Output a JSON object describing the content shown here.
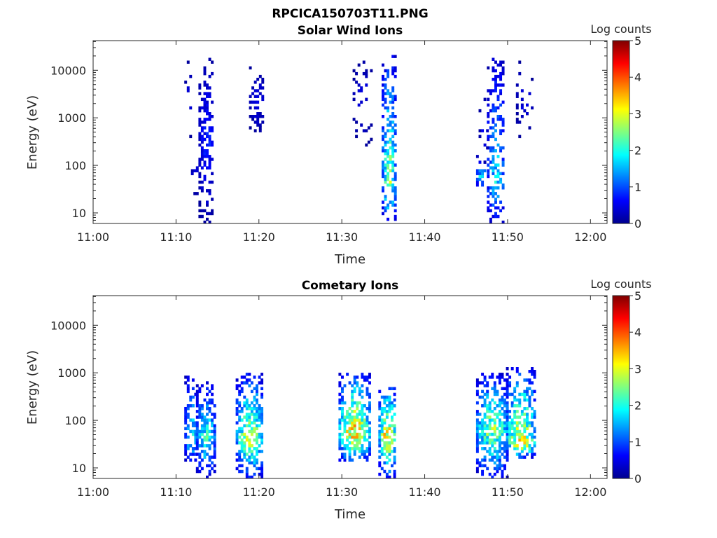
{
  "figure_title": "RPCICA150703T11.PNG",
  "chart_data": [
    {
      "type": "heatmap",
      "title": "Solar Wind Ions",
      "xlabel": "Time",
      "ylabel": "Energy (eV)",
      "x_ticks": [
        "11:00",
        "11:10",
        "11:20",
        "11:30",
        "11:40",
        "11:50",
        "12:00"
      ],
      "xlim": [
        "11:00",
        "12:02"
      ],
      "y_scale": "log",
      "y_ticks": [
        10,
        100,
        1000,
        10000
      ],
      "y_tick_labels": [
        "10",
        "100",
        "1000",
        "10000"
      ],
      "ylim": [
        6,
        42000
      ],
      "colorbar": {
        "label": "Log counts",
        "range": [
          0,
          5
        ],
        "ticks": [
          "0",
          "1",
          "2",
          "3",
          "4",
          "5"
        ],
        "colormap": "jet"
      },
      "bursts": [
        {
          "t_start": 11.0,
          "t_end": 11.8,
          "e_min": 300,
          "e_max": 18000,
          "e_center": 2000,
          "peak": 0.6,
          "density": 0.18
        },
        {
          "t_start": 11.8,
          "t_end": 12.6,
          "e_min": 20,
          "e_max": 200,
          "e_center": 60,
          "peak": 0.7,
          "density": 0.3
        },
        {
          "t_start": 12.7,
          "t_end": 14.5,
          "e_min": 6,
          "e_max": 16000,
          "e_center": 300,
          "peak": 0.9,
          "density": 0.55
        },
        {
          "t_start": 18.8,
          "t_end": 20.6,
          "e_min": 300,
          "e_max": 16000,
          "e_center": 2500,
          "peak": 0.6,
          "density": 0.3
        },
        {
          "t_start": 31.3,
          "t_end": 33.6,
          "e_min": 250,
          "e_max": 16000,
          "e_center": 2500,
          "peak": 0.6,
          "density": 0.22
        },
        {
          "t_start": 34.8,
          "t_end": 36.3,
          "e_min": 6,
          "e_max": 20000,
          "e_center": 40,
          "peak": 3.0,
          "density": 0.6
        },
        {
          "t_start": 46.2,
          "t_end": 47.2,
          "e_min": 30,
          "e_max": 150,
          "e_center": 50,
          "peak": 2.2,
          "density": 0.5
        },
        {
          "t_start": 47.5,
          "t_end": 49.5,
          "e_min": 6,
          "e_max": 16000,
          "e_center": 40,
          "peak": 2.0,
          "density": 0.55
        },
        {
          "t_start": 51.0,
          "t_end": 52.8,
          "e_min": 300,
          "e_max": 16000,
          "e_center": 2000,
          "peak": 0.6,
          "density": 0.2
        },
        {
          "t_start": 46.5,
          "t_end": 47.5,
          "e_min": 60,
          "e_max": 3000,
          "e_center": 500,
          "peak": 0.6,
          "density": 0.15
        }
      ]
    },
    {
      "type": "heatmap",
      "title": "Cometary Ions",
      "xlabel": "Time",
      "ylabel": "Energy (eV)",
      "x_ticks": [
        "11:00",
        "11:10",
        "11:20",
        "11:30",
        "11:40",
        "11:50",
        "12:00"
      ],
      "xlim": [
        "11:00",
        "12:02"
      ],
      "y_scale": "log",
      "y_ticks": [
        10,
        100,
        1000,
        10000
      ],
      "y_tick_labels": [
        "10",
        "100",
        "1000",
        "10000"
      ],
      "ylim": [
        6,
        42000
      ],
      "colorbar": {
        "label": "Log counts",
        "range": [
          0,
          5
        ],
        "ticks": [
          "0",
          "1",
          "2",
          "3",
          "4",
          "5"
        ],
        "colormap": "jet"
      },
      "bursts": [
        {
          "t_start": 11.0,
          "t_end": 12.4,
          "e_min": 12,
          "e_max": 900,
          "e_center": 35,
          "peak": 2.2,
          "density": 0.7
        },
        {
          "t_start": 12.4,
          "t_end": 14.6,
          "e_min": 6,
          "e_max": 600,
          "e_center": 40,
          "peak": 2.4,
          "density": 0.7
        },
        {
          "t_start": 17.2,
          "t_end": 20.4,
          "e_min": 6,
          "e_max": 900,
          "e_center": 40,
          "peak": 3.2,
          "density": 0.7
        },
        {
          "t_start": 29.6,
          "t_end": 33.2,
          "e_min": 12,
          "e_max": 900,
          "e_center": 50,
          "peak": 3.9,
          "density": 0.75
        },
        {
          "t_start": 34.4,
          "t_end": 36.4,
          "e_min": 6,
          "e_max": 500,
          "e_center": 50,
          "peak": 3.8,
          "density": 0.75
        },
        {
          "t_start": 46.2,
          "t_end": 49.8,
          "e_min": 6,
          "e_max": 900,
          "e_center": 60,
          "peak": 3.0,
          "density": 0.7
        },
        {
          "t_start": 49.8,
          "t_end": 53.2,
          "e_min": 15,
          "e_max": 1200,
          "e_center": 30,
          "peak": 3.6,
          "density": 0.7
        }
      ]
    }
  ]
}
